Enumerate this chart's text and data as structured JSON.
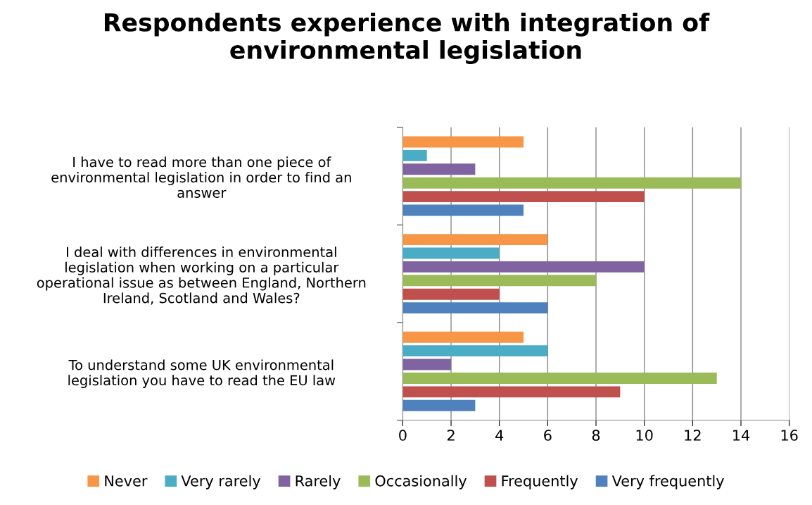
{
  "chart_data": {
    "type": "bar",
    "orientation": "horizontal",
    "title": "Respondents experience with integration of\nenvironmental legislation",
    "categories": [
      "I have to read more than one piece of\nenvironmental legislation in order to find an\nanswer",
      "I deal with differences in environmental\nlegislation when working on a particular\noperational issue as between England, Northern\nIreland, Scotland and Wales?",
      "To understand some UK environmental\nlegislation you have to read the EU law"
    ],
    "series": [
      {
        "name": "Never",
        "color": "#f79646",
        "values": [
          5,
          6,
          5
        ]
      },
      {
        "name": "Very rarely",
        "color": "#4bacc6",
        "values": [
          1,
          4,
          6
        ]
      },
      {
        "name": "Rarely",
        "color": "#8064a2",
        "values": [
          3,
          10,
          2
        ]
      },
      {
        "name": "Occasionally",
        "color": "#9bbb59",
        "values": [
          14,
          8,
          13
        ]
      },
      {
        "name": "Frequently",
        "color": "#c0504d",
        "values": [
          10,
          4,
          9
        ]
      },
      {
        "name": "Very frequently",
        "color": "#4f81bd",
        "values": [
          5,
          6,
          3
        ]
      }
    ],
    "xlim": [
      0,
      16
    ],
    "xticks": [
      0,
      2,
      4,
      6,
      8,
      10,
      12,
      14,
      16
    ],
    "grid": "x",
    "legend": "bottom"
  }
}
